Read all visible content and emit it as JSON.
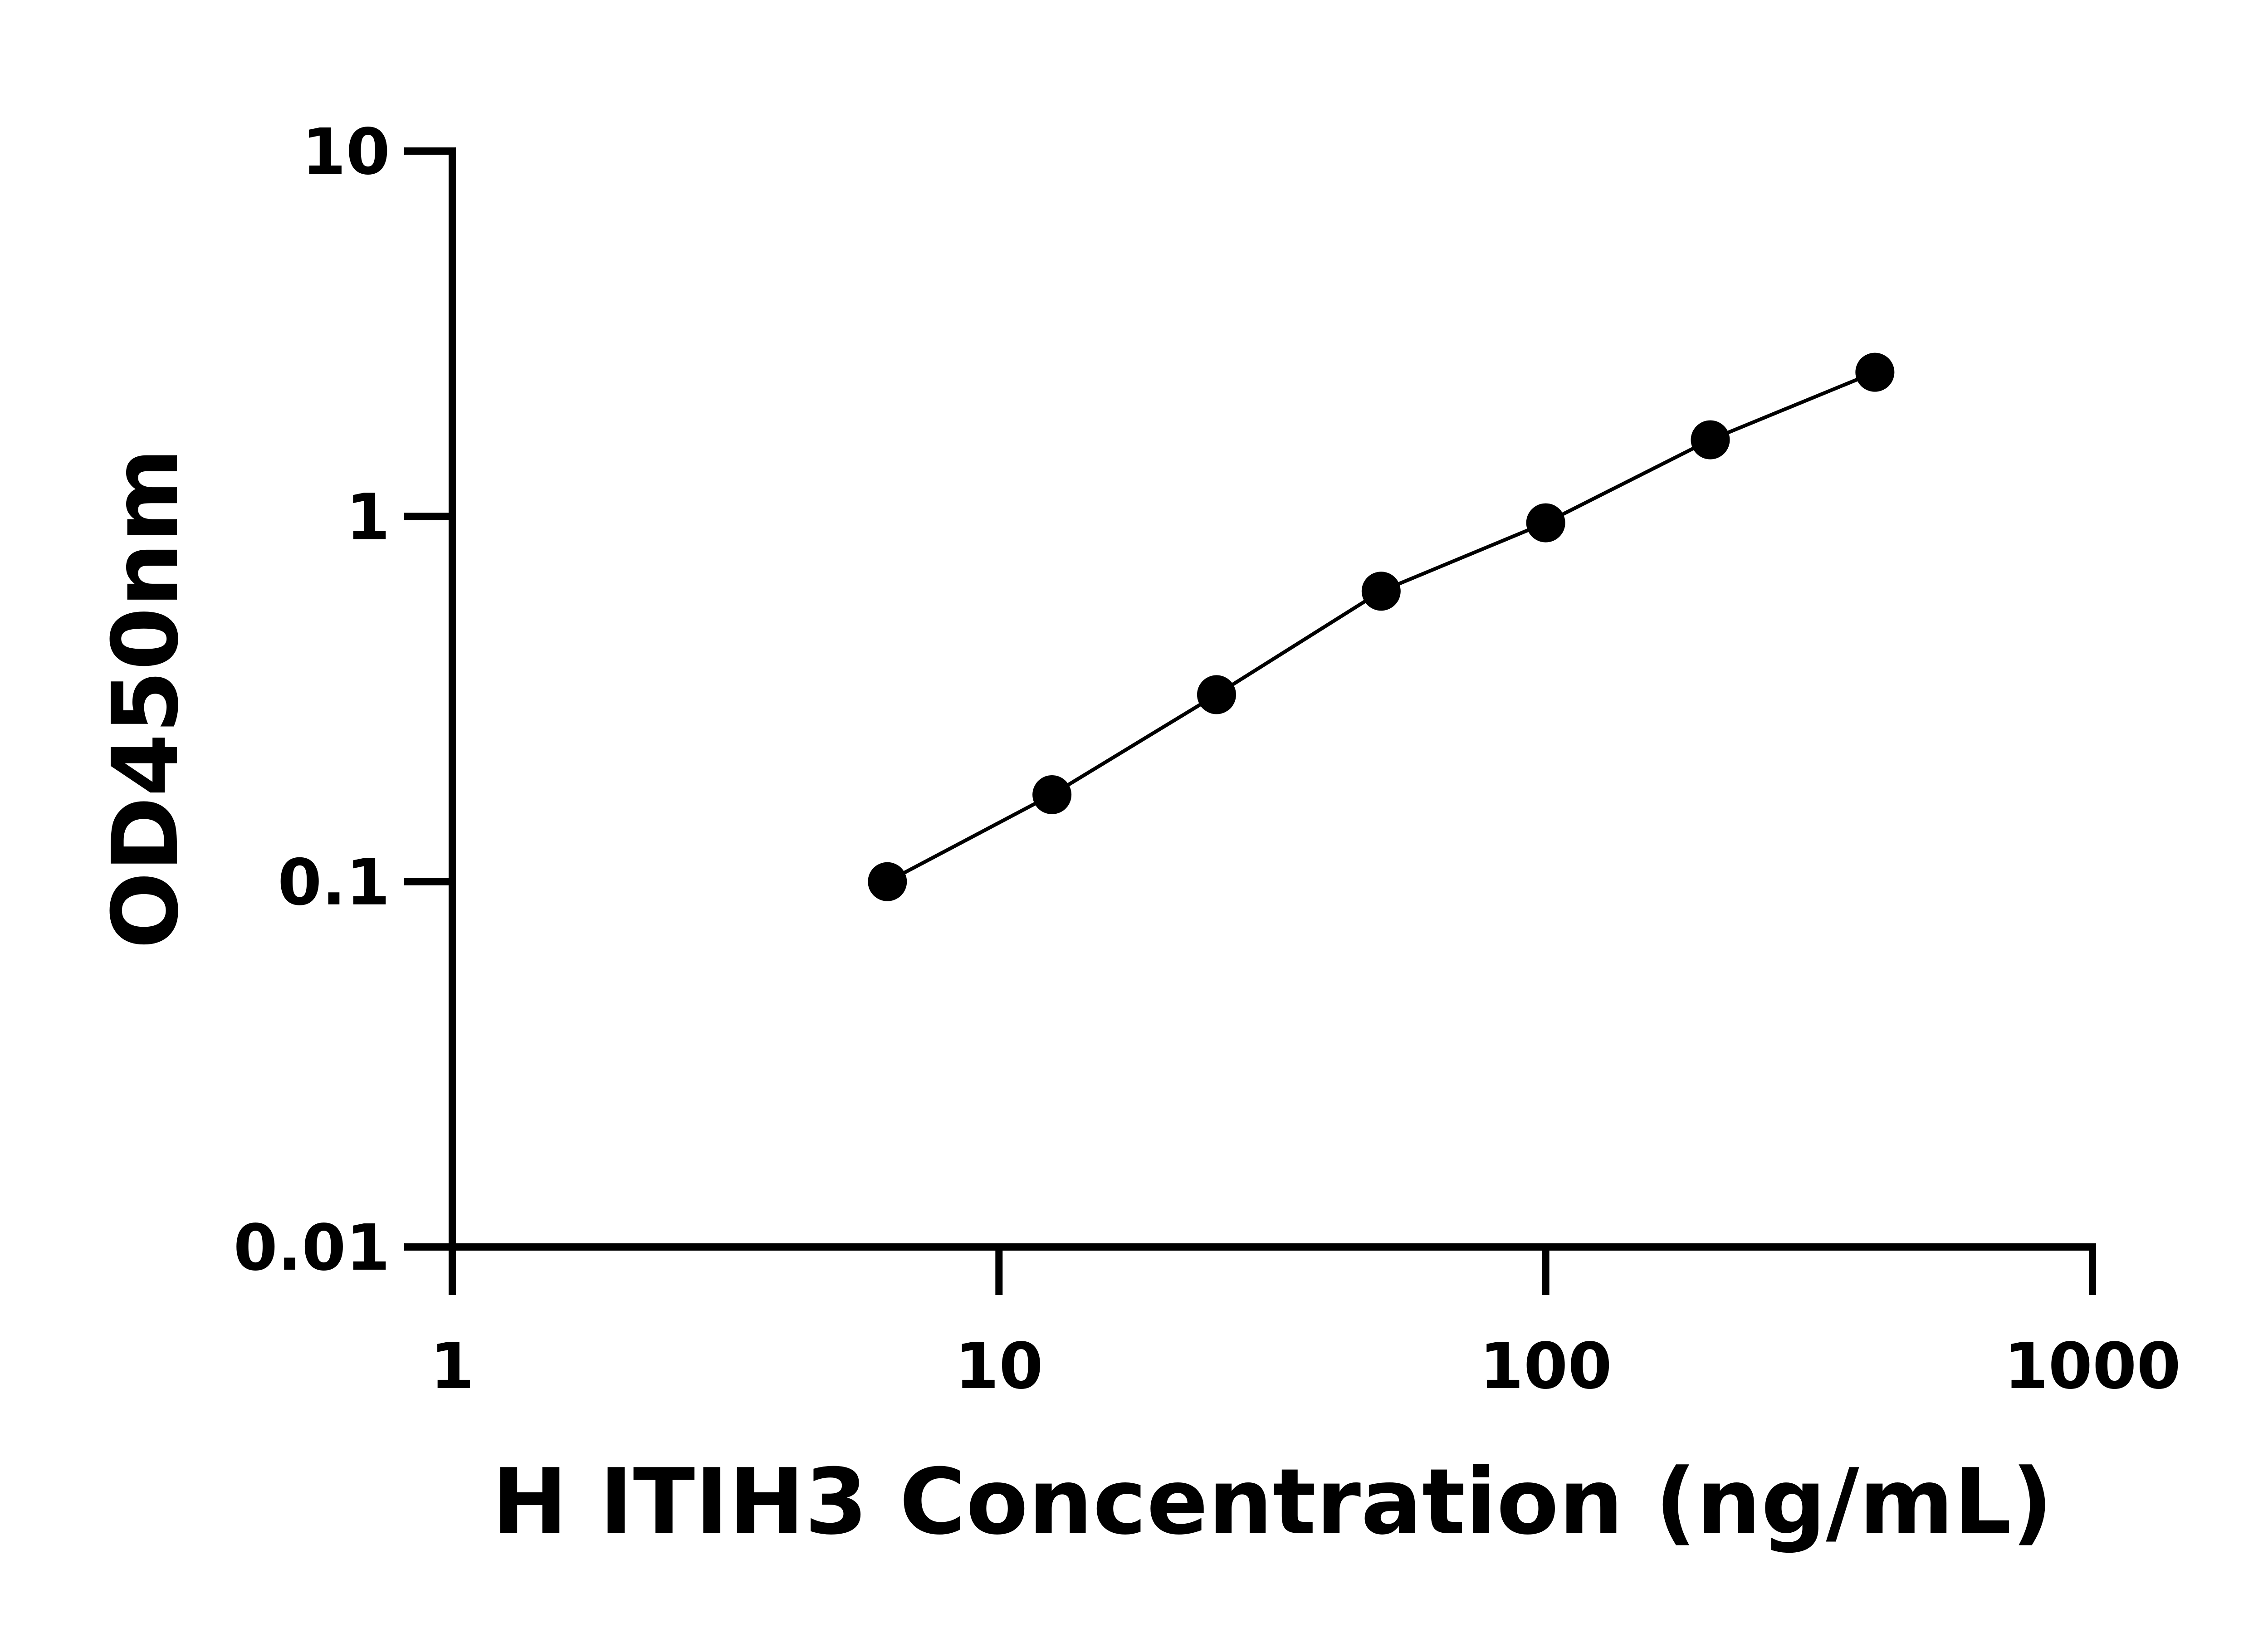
{
  "chart_data": {
    "type": "scatter",
    "title": "",
    "xlabel": "H ITIH3 Concentration (ng/mL)",
    "ylabel": "OD450nm",
    "x_scale": "log",
    "y_scale": "log",
    "xlim": [
      1,
      1000
    ],
    "ylim": [
      0.01,
      10
    ],
    "x_ticks": [
      "1",
      "10",
      "100",
      "1000"
    ],
    "y_ticks": [
      "0.01",
      "0.1",
      "1",
      "10"
    ],
    "grid": false,
    "line_connects_points": true,
    "colors": {
      "points": "#000000",
      "line": "#000000"
    },
    "series": [
      {
        "x": [
          6.25,
          12.5,
          25,
          50,
          100,
          200,
          400
        ],
        "y": [
          0.1,
          0.173,
          0.325,
          0.624,
          0.96,
          1.62,
          2.48
        ]
      }
    ]
  }
}
